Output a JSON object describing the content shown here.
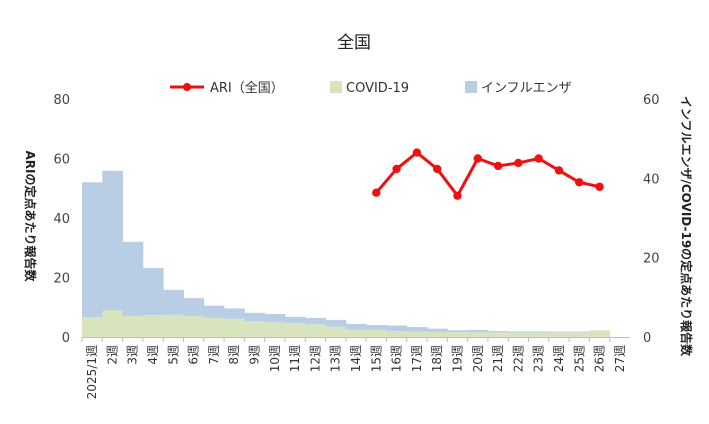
{
  "chart_data": {
    "type": "bar+line",
    "title": "全国",
    "categories": [
      "2025/1週",
      "2週",
      "3週",
      "4週",
      "5週",
      "6週",
      "7週",
      "8週",
      "9週",
      "10週",
      "11週",
      "12週",
      "13週",
      "14週",
      "15週",
      "16週",
      "17週",
      "18週",
      "19週",
      "20週",
      "21週",
      "22週",
      "23週",
      "24週",
      "25週",
      "26週",
      "27週"
    ],
    "y_left": {
      "label": "ARIの定点あたり報告数",
      "ylim": [
        0,
        80
      ],
      "ticks": [
        0,
        20,
        40,
        60,
        80
      ]
    },
    "y_right": {
      "label": "インフルエンザ/COVID-19の定点あたり報告数",
      "ylim": [
        0,
        60
      ],
      "ticks": [
        0,
        20,
        40,
        60
      ]
    },
    "series": [
      {
        "name": "ARI（全国）",
        "type": "line",
        "axis": "left",
        "color": "#ee1111",
        "values": [
          null,
          null,
          null,
          null,
          null,
          null,
          null,
          null,
          null,
          null,
          null,
          null,
          null,
          null,
          48.5,
          56.5,
          62,
          56.5,
          47.5,
          60,
          57.5,
          58.5,
          60,
          56,
          52,
          50.5,
          null
        ]
      },
      {
        "name": "COVID-19",
        "type": "area",
        "axis": "right",
        "color": "#d7e4bd",
        "values": [
          5,
          6.7,
          5.3,
          5.5,
          5.6,
          5.3,
          4.9,
          4.6,
          4,
          3.7,
          3.5,
          3.2,
          2.6,
          1.9,
          1.8,
          1.5,
          1.4,
          1.3,
          1.2,
          1.2,
          1.2,
          1.1,
          1.1,
          1.2,
          1.2,
          1.7,
          null
        ]
      },
      {
        "name": "インフルエンザ",
        "type": "area",
        "axis": "right",
        "color": "#b9cde5",
        "stacked_on": "COVID-19",
        "values": [
          34,
          35.2,
          18.7,
          11.9,
          6.3,
          4.5,
          3,
          2.6,
          2.1,
          2.1,
          1.6,
          1.6,
          1.7,
          1.4,
          1.2,
          1.4,
          1.1,
          0.8,
          0.5,
          0.6,
          0.3,
          0.3,
          0.3,
          0.2,
          0.2,
          0,
          null
        ]
      }
    ],
    "legend": {
      "position": "top-center",
      "items": [
        {
          "label": "ARI（全国）",
          "color": "#ee1111"
        },
        {
          "label": "COVID-19",
          "color": "#d7e4bd"
        },
        {
          "label": "インフルエンザ",
          "color": "#b9cde5"
        }
      ]
    }
  }
}
